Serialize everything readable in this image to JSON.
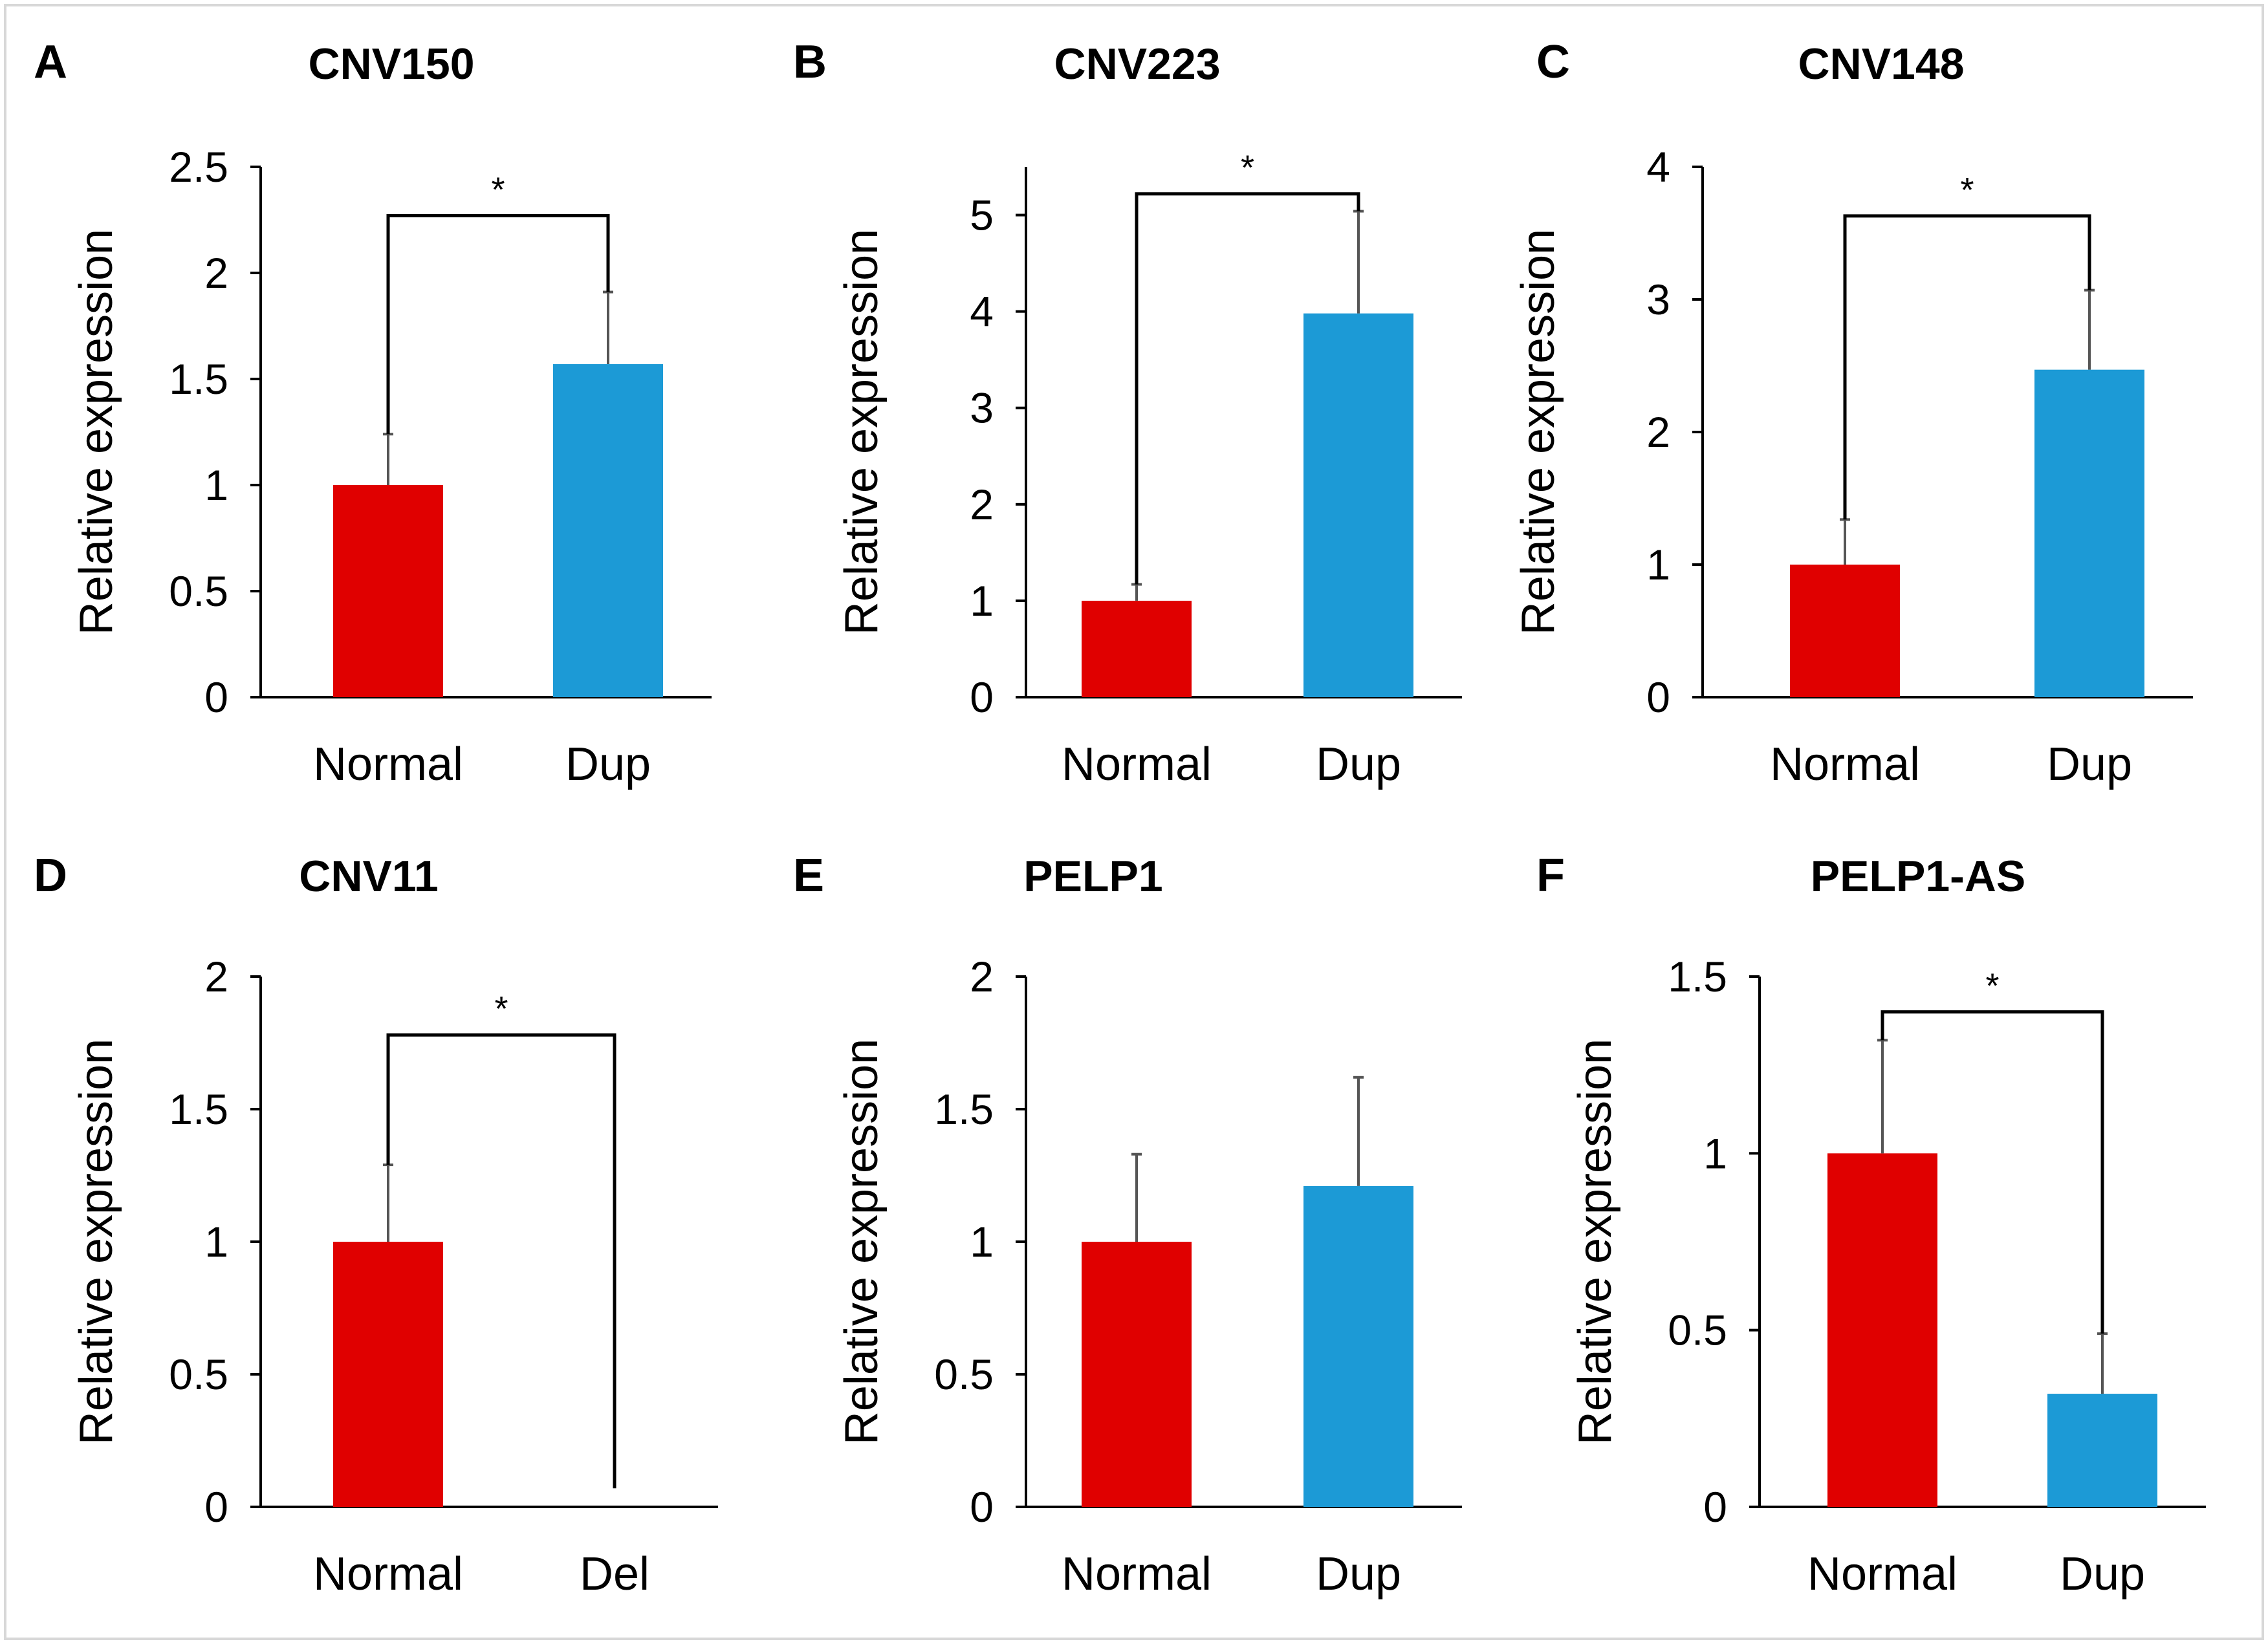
{
  "figure": {
    "colors": {
      "normal": "#e00000",
      "dup": "#1c9ad6",
      "axis": "#000000",
      "frame": "#d8d8d8"
    }
  },
  "chart_data": [
    {
      "panel": "A",
      "type": "bar",
      "title": "CNV150",
      "ylabel": "Relative expression",
      "xlabel": "",
      "categories": [
        "Normal",
        "Dup"
      ],
      "values": [
        1.0,
        1.57
      ],
      "errors": [
        0.24,
        0.34
      ],
      "ylim": [
        0,
        2.5
      ],
      "yticks": [
        0,
        0.5,
        1,
        1.5,
        2,
        2.5
      ],
      "ytick_labels": [
        "0",
        "0.5",
        "1",
        "1.5",
        "2",
        "2.5"
      ],
      "significance": "*",
      "bracket_y": 2.27
    },
    {
      "panel": "B",
      "type": "bar",
      "title": "CNV223",
      "ylabel": "Relative expression",
      "xlabel": "",
      "categories": [
        "Normal",
        "Dup"
      ],
      "values": [
        1.0,
        3.98
      ],
      "errors": [
        0.17,
        1.06
      ],
      "ylim": [
        0,
        5.5
      ],
      "yticks": [
        0,
        1,
        2,
        3,
        4,
        5
      ],
      "ytick_labels": [
        "0",
        "1",
        "2",
        "3",
        "4",
        "5"
      ],
      "significance": "*",
      "bracket_y": 5.22
    },
    {
      "panel": "C",
      "type": "bar",
      "title": "CNV148",
      "ylabel": "Relative expression",
      "xlabel": "",
      "categories": [
        "Normal",
        "Dup"
      ],
      "values": [
        1.0,
        2.47
      ],
      "errors": [
        0.34,
        0.6
      ],
      "ylim": [
        0,
        4
      ],
      "yticks": [
        0,
        1,
        2,
        3,
        4
      ],
      "ytick_labels": [
        "0",
        "1",
        "2",
        "3",
        "4"
      ],
      "significance": "*",
      "bracket_y": 3.63
    },
    {
      "panel": "D",
      "type": "bar",
      "title": "CNV11",
      "ylabel": "Relative expression",
      "xlabel": "",
      "categories": [
        "Normal",
        "Del"
      ],
      "values": [
        1.0,
        0.0
      ],
      "errors": [
        0.29,
        0.0
      ],
      "ylim": [
        0,
        2
      ],
      "yticks": [
        0,
        0.5,
        1,
        1.5,
        2
      ],
      "ytick_labels": [
        "0",
        "0.5",
        "1",
        "1.5",
        "2"
      ],
      "significance": "*",
      "bracket_y": 1.78,
      "bracket_right_end": 0.07
    },
    {
      "panel": "E",
      "type": "bar",
      "title": "PELP1",
      "ylabel": "Relative expression",
      "xlabel": "",
      "categories": [
        "Normal",
        "Dup"
      ],
      "values": [
        1.0,
        1.21
      ],
      "errors": [
        0.33,
        0.41
      ],
      "ylim": [
        0,
        2
      ],
      "yticks": [
        0,
        0.5,
        1,
        1.5,
        2
      ],
      "ytick_labels": [
        "0",
        "0.5",
        "1",
        "1.5",
        "2"
      ],
      "significance": ""
    },
    {
      "panel": "F",
      "type": "bar",
      "title": "PELP1-AS",
      "ylabel": "Relative expression",
      "xlabel": "",
      "categories": [
        "Normal",
        "Dup"
      ],
      "values": [
        1.0,
        0.32
      ],
      "errors": [
        0.32,
        0.17
      ],
      "ylim": [
        0,
        1.5
      ],
      "yticks": [
        0,
        0.5,
        1,
        1.5
      ],
      "ytick_labels": [
        "0",
        "0.5",
        "1",
        "1.5"
      ],
      "significance": "*",
      "bracket_y": 1.4
    }
  ]
}
